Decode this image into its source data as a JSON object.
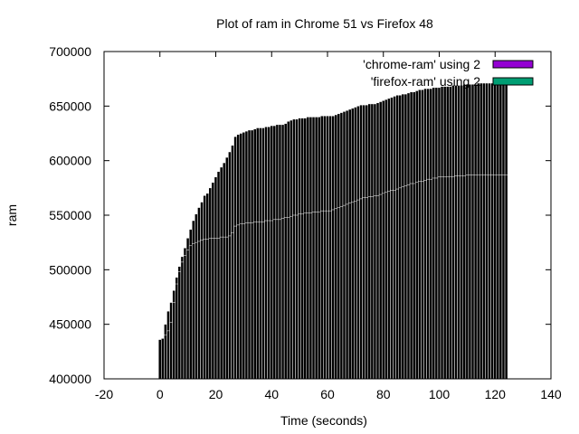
{
  "chart_data": {
    "type": "bar",
    "title": "Plot of ram in Chrome 51 vs Firefox 48",
    "xlabel": "Time (seconds)",
    "ylabel": "ram",
    "xlim": [
      -20,
      140
    ],
    "ylim": [
      400000,
      700000
    ],
    "xticks": [
      -20,
      0,
      20,
      40,
      60,
      80,
      100,
      120,
      140
    ],
    "yticks": [
      400000,
      450000,
      500000,
      550000,
      600000,
      650000,
      700000
    ],
    "legend_position": "top-right",
    "grid": false,
    "x": [
      0,
      1,
      2,
      3,
      4,
      5,
      6,
      7,
      8,
      9,
      10,
      11,
      12,
      13,
      14,
      15,
      16,
      17,
      18,
      19,
      20,
      21,
      22,
      23,
      24,
      25,
      26,
      27,
      28,
      29,
      30,
      31,
      32,
      33,
      34,
      35,
      36,
      37,
      38,
      39,
      40,
      41,
      42,
      43,
      44,
      45,
      46,
      47,
      48,
      49,
      50,
      51,
      52,
      53,
      54,
      55,
      56,
      57,
      58,
      59,
      60,
      61,
      62,
      63,
      64,
      65,
      66,
      67,
      68,
      69,
      70,
      71,
      72,
      73,
      74,
      75,
      76,
      77,
      78,
      79,
      80,
      81,
      82,
      83,
      84,
      85,
      86,
      87,
      88,
      89,
      90,
      91,
      92,
      93,
      94,
      95,
      96,
      97,
      98,
      99,
      100,
      101,
      102,
      103,
      104,
      105,
      106,
      107,
      108,
      109,
      110,
      111,
      112,
      113,
      114,
      115,
      116,
      117,
      118,
      119,
      120,
      121,
      122,
      123,
      124
    ],
    "series": [
      {
        "name": "'chrome-ram' using 2",
        "color": "#9400d3",
        "values": [
          435000,
          436000,
          450000,
          462000,
          470000,
          481000,
          493000,
          503000,
          512000,
          520000,
          529000,
          537000,
          545000,
          551000,
          557000,
          562000,
          568000,
          570000,
          575000,
          580000,
          585000,
          590000,
          594000,
          598000,
          603000,
          608000,
          614000,
          622000,
          624000,
          625000,
          626000,
          627000,
          628000,
          628000,
          629000,
          630000,
          630000,
          630000,
          631000,
          631000,
          632000,
          632000,
          633000,
          633000,
          633000,
          634000,
          636000,
          637000,
          638000,
          638000,
          639000,
          639000,
          639000,
          640000,
          640000,
          640000,
          640000,
          640000,
          641000,
          641000,
          641000,
          641000,
          641000,
          642000,
          643000,
          644000,
          645000,
          646000,
          647000,
          648000,
          649000,
          650000,
          651000,
          651000,
          651000,
          652000,
          652000,
          652000,
          653000,
          654000,
          655000,
          656000,
          657000,
          658000,
          659000,
          660000,
          660000,
          661000,
          661000,
          662000,
          663000,
          663000,
          664000,
          665000,
          665000,
          666000,
          666000,
          666000,
          667000,
          667000,
          667000,
          668000,
          668000,
          668000,
          668000,
          669000,
          669000,
          669000,
          669000,
          670000,
          670000,
          670000,
          670000,
          670000,
          671000,
          671000,
          671000,
          671000,
          671000,
          671000,
          672000,
          672000,
          672000,
          672000,
          672000
        ]
      },
      {
        "name": "'firefox-ram' using 2",
        "color": "#009e73",
        "values": [
          436000,
          437000,
          440000,
          444000,
          452000,
          470000,
          487000,
          498000,
          507000,
          513000,
          518000,
          522000,
          524000,
          525000,
          526000,
          527000,
          528000,
          528000,
          529000,
          529000,
          529000,
          529000,
          530000,
          530000,
          530000,
          531000,
          534000,
          540000,
          541000,
          542000,
          542000,
          543000,
          543000,
          543000,
          544000,
          544000,
          544000,
          544000,
          545000,
          545000,
          545000,
          546000,
          546000,
          546000,
          547000,
          548000,
          548000,
          549000,
          550000,
          550000,
          551000,
          551000,
          552000,
          552000,
          552000,
          553000,
          553000,
          553000,
          554000,
          554000,
          554000,
          554000,
          555000,
          556000,
          557000,
          558000,
          559000,
          560000,
          561000,
          562000,
          563000,
          564000,
          565000,
          566000,
          566000,
          567000,
          567000,
          568000,
          568000,
          569000,
          570000,
          571000,
          572000,
          573000,
          573000,
          574000,
          575000,
          576000,
          577000,
          578000,
          579000,
          579000,
          580000,
          581000,
          581000,
          582000,
          583000,
          583000,
          584000,
          584000,
          585000,
          585000,
          585000,
          585000,
          585000,
          585000,
          586000,
          586000,
          586000,
          586000,
          587000,
          587000,
          587000,
          587000,
          587000,
          587000,
          587000,
          587000,
          587000,
          587000,
          587000,
          587000,
          587000,
          587000,
          587000
        ]
      }
    ]
  }
}
